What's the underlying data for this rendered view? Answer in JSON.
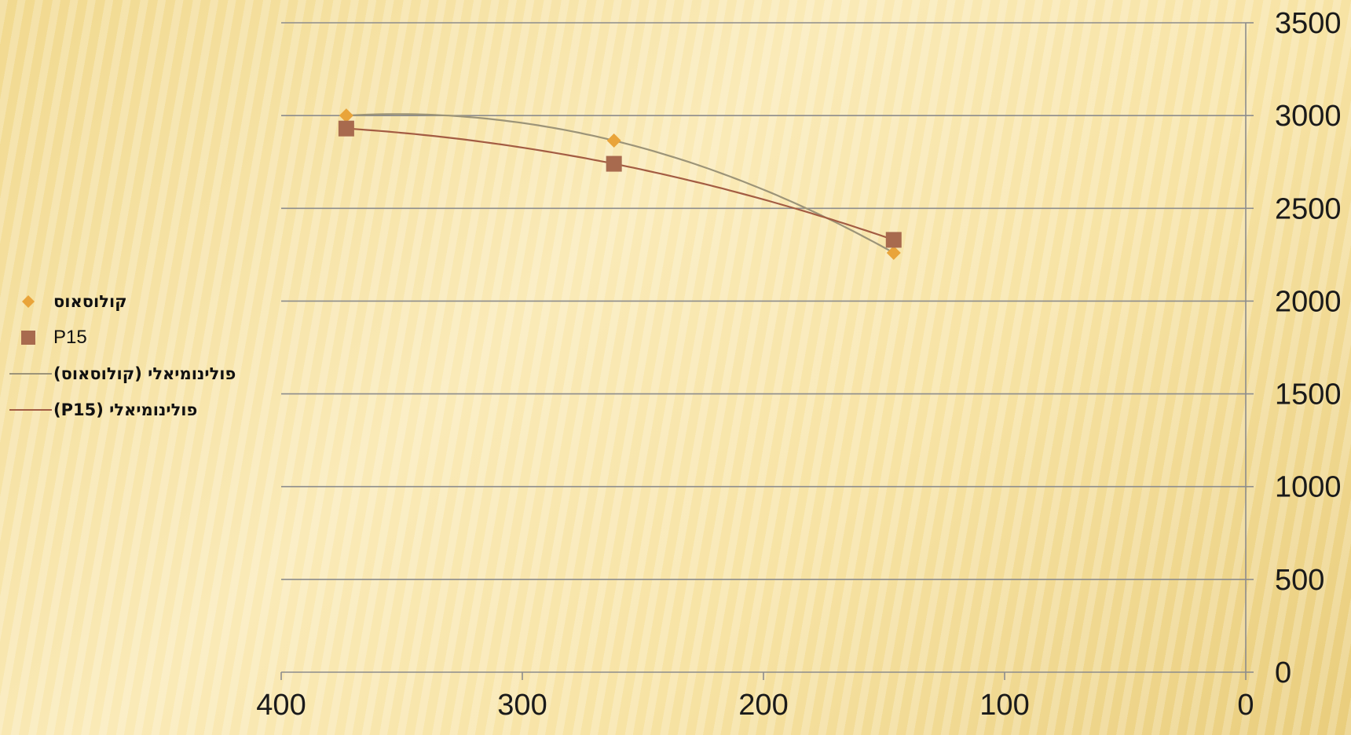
{
  "chart_data": {
    "type": "scatter",
    "title": "",
    "xlabel": "",
    "ylabel": "",
    "xlim": [
      400,
      0
    ],
    "ylim": [
      0,
      3500
    ],
    "x_ticks": [
      "400",
      "300",
      "200",
      "100",
      "0"
    ],
    "y_ticks": [
      "0",
      "500",
      "1000",
      "1500",
      "2000",
      "2500",
      "3000",
      "3500"
    ],
    "grid": true,
    "y_axis_position": "right",
    "x_axis_reversed": true,
    "legend_position": "left",
    "series": [
      {
        "name": "קולוסאוס",
        "marker": "diamond",
        "color": "#e9a43a",
        "points": [
          {
            "x": 373,
            "y": 3000
          },
          {
            "x": 262,
            "y": 2865
          },
          {
            "x": 146,
            "y": 2260
          }
        ]
      },
      {
        "name": "P15",
        "marker": "square",
        "color": "#a86a4e",
        "points": [
          {
            "x": 373,
            "y": 2930
          },
          {
            "x": 262,
            "y": 2740
          },
          {
            "x": 146,
            "y": 2330
          }
        ]
      }
    ],
    "trendlines": [
      {
        "name": "פולינומיאלי (קולוסאוס)",
        "type": "polynomial",
        "of_series": 0,
        "color": "#9c9478"
      },
      {
        "name": "פולינומיאלי (P15)",
        "type": "polynomial",
        "of_series": 1,
        "color": "#a35c43"
      }
    ]
  }
}
